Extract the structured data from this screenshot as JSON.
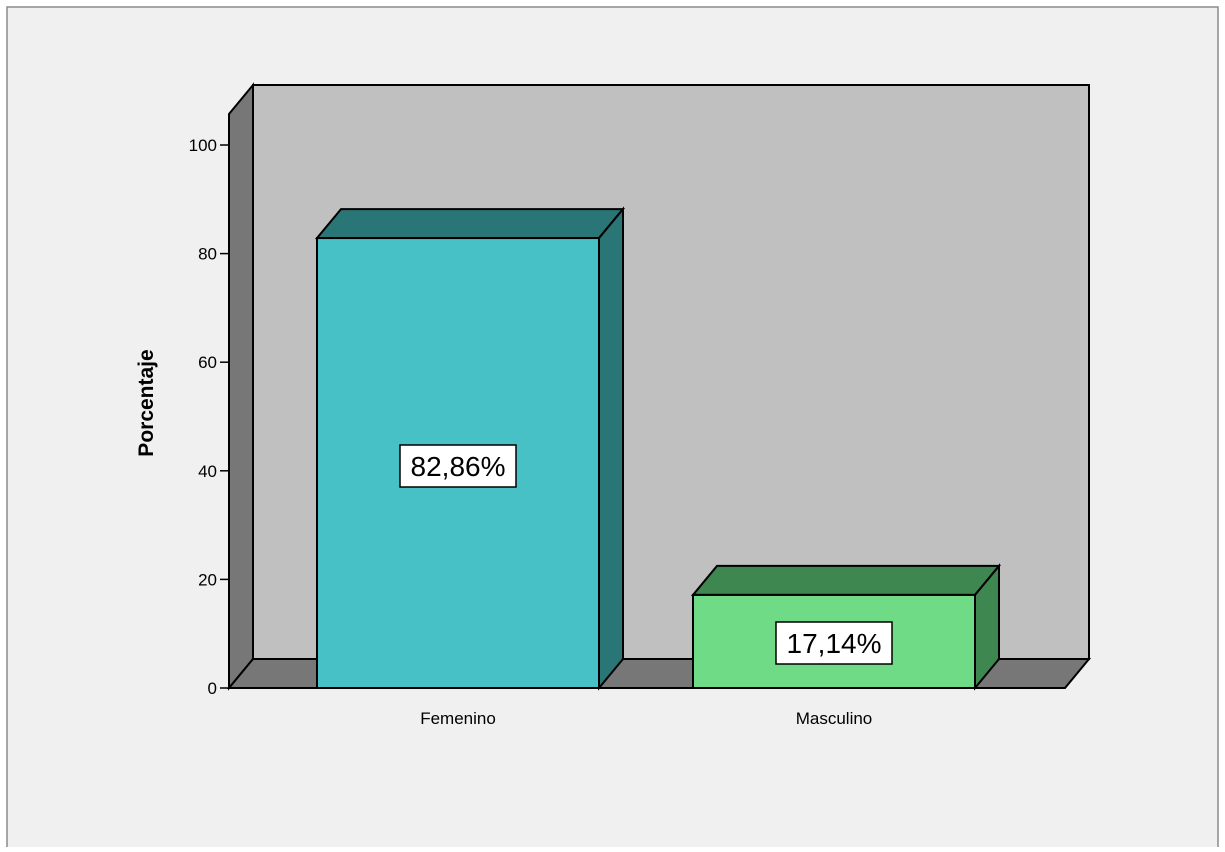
{
  "chart_data": {
    "type": "bar",
    "categories": [
      "Femenino",
      "Masculino"
    ],
    "values": [
      82.86,
      17.14
    ],
    "data_labels": [
      "82,86%",
      "17,14%"
    ],
    "title": "",
    "xlabel": "",
    "ylabel": "Porcentaje",
    "ylim": [
      0,
      100
    ],
    "yticks": [
      0,
      20,
      40,
      60,
      80,
      100
    ],
    "grid": false,
    "three_d": true,
    "colors": {
      "bar_fronts": [
        "#48c1c6",
        "#6fdb86"
      ],
      "bar_sides": [
        "#2a7677",
        "#3f8750"
      ],
      "back_wall": "#c0c0c0",
      "side_wall": "#777777",
      "floor": "#777777",
      "outer_background": "#f0f0f0"
    }
  }
}
